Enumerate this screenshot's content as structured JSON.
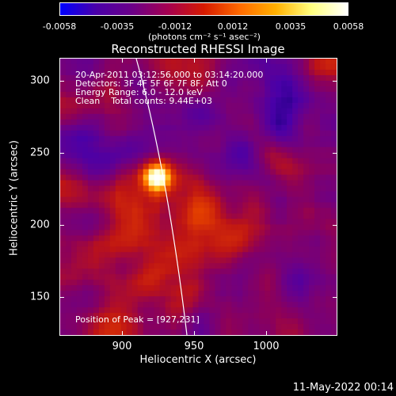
{
  "colorbar": {
    "ticks": [
      "-0.0058",
      "-0.0035",
      "-0.0012",
      "0.0012",
      "0.0035",
      "0.0058"
    ],
    "unit": "(photons cm⁻² s⁻¹ asec⁻²)",
    "stops": [
      "#0000ff",
      "#4a00a8",
      "#6b0088",
      "#a50050",
      "#d61a00",
      "#ff6a00",
      "#ffb000",
      "#ffff80",
      "#ffffff"
    ]
  },
  "title": "Reconstructed RHESSI Image",
  "info": {
    "line1": "20-Apr-2011 03:12:56.000 to 03:14:20.000",
    "line2": "Detectors: 3F 4F 5F 6F 7F 8F, Att 0",
    "line3": "Energy Range: 6.0 - 12.0 keV",
    "line4": "Clean    Total counts: 9.44E+03",
    "peak": "Position of Peak = [927,231]"
  },
  "axes": {
    "x_ticks": [
      "900",
      "950",
      "1000"
    ],
    "y_ticks": [
      "300",
      "250",
      "200",
      "150"
    ],
    "xlabel": "Heliocentric X (arcsec)",
    "ylabel": "Heliocentric Y (arcsec)",
    "xlim": [
      861,
      1048
    ],
    "ylim": [
      120,
      312
    ]
  },
  "footer": "11-May-2022 00:14"
}
